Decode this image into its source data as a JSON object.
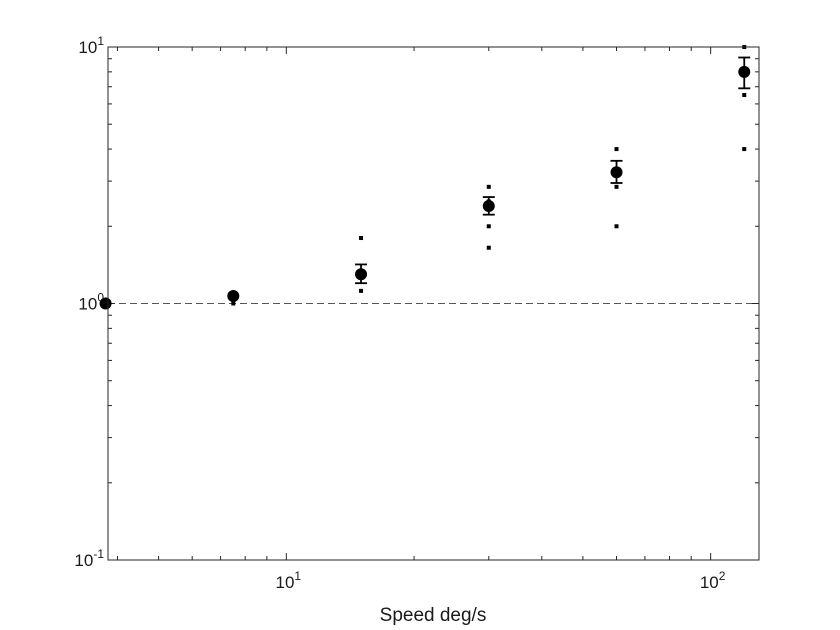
{
  "chart_data": {
    "type": "scatter",
    "title": "",
    "xlabel": "Speed deg/s",
    "ylabel": "",
    "xscale": "log",
    "yscale": "log",
    "xlim": [
      3.8,
      130
    ],
    "ylim": [
      0.1,
      10
    ],
    "grid": false,
    "legend": "none",
    "reference_line": {
      "y": 1,
      "style": "dashed",
      "color": "#555555"
    },
    "x_ticks": [
      {
        "value": 10,
        "base": "10",
        "exp": "1"
      },
      {
        "value": 100,
        "base": "10",
        "exp": "2"
      }
    ],
    "y_ticks": [
      {
        "value": 0.1,
        "base": "10",
        "exp": "-1"
      },
      {
        "value": 1,
        "base": "10",
        "exp": "0"
      },
      {
        "value": 10,
        "base": "10",
        "exp": "1"
      }
    ],
    "series": [
      {
        "marker": "filled-circle",
        "color": "#000000",
        "points": [
          {
            "x": 3.75,
            "y": 1.0,
            "err_low": 1.0,
            "err_high": 1.0
          },
          {
            "x": 7.5,
            "y": 1.07,
            "err_low": 1.07,
            "err_high": 1.07
          },
          {
            "x": 15,
            "y": 1.3,
            "err_low": 1.2,
            "err_high": 1.42
          },
          {
            "x": 30,
            "y": 2.4,
            "err_low": 2.22,
            "err_high": 2.6
          },
          {
            "x": 60,
            "y": 3.25,
            "err_low": 2.95,
            "err_high": 3.6
          },
          {
            "x": 120,
            "y": 8.0,
            "err_low": 6.9,
            "err_high": 9.1
          }
        ]
      },
      {
        "marker": "small-square",
        "color": "#000000",
        "points": [
          {
            "x": 3.75,
            "y": 1.0
          },
          {
            "x": 7.5,
            "y": 1.0
          },
          {
            "x": 7.5,
            "y": 1.05
          },
          {
            "x": 15,
            "y": 1.8
          },
          {
            "x": 15,
            "y": 1.12
          },
          {
            "x": 30,
            "y": 2.85
          },
          {
            "x": 30,
            "y": 2.5
          },
          {
            "x": 30,
            "y": 2.0
          },
          {
            "x": 30,
            "y": 1.65
          },
          {
            "x": 60,
            "y": 4.0
          },
          {
            "x": 60,
            "y": 2.85
          },
          {
            "x": 60,
            "y": 2.0
          },
          {
            "x": 120,
            "y": 10.0
          },
          {
            "x": 120,
            "y": 6.5
          },
          {
            "x": 120,
            "y": 4.0
          }
        ]
      }
    ]
  }
}
